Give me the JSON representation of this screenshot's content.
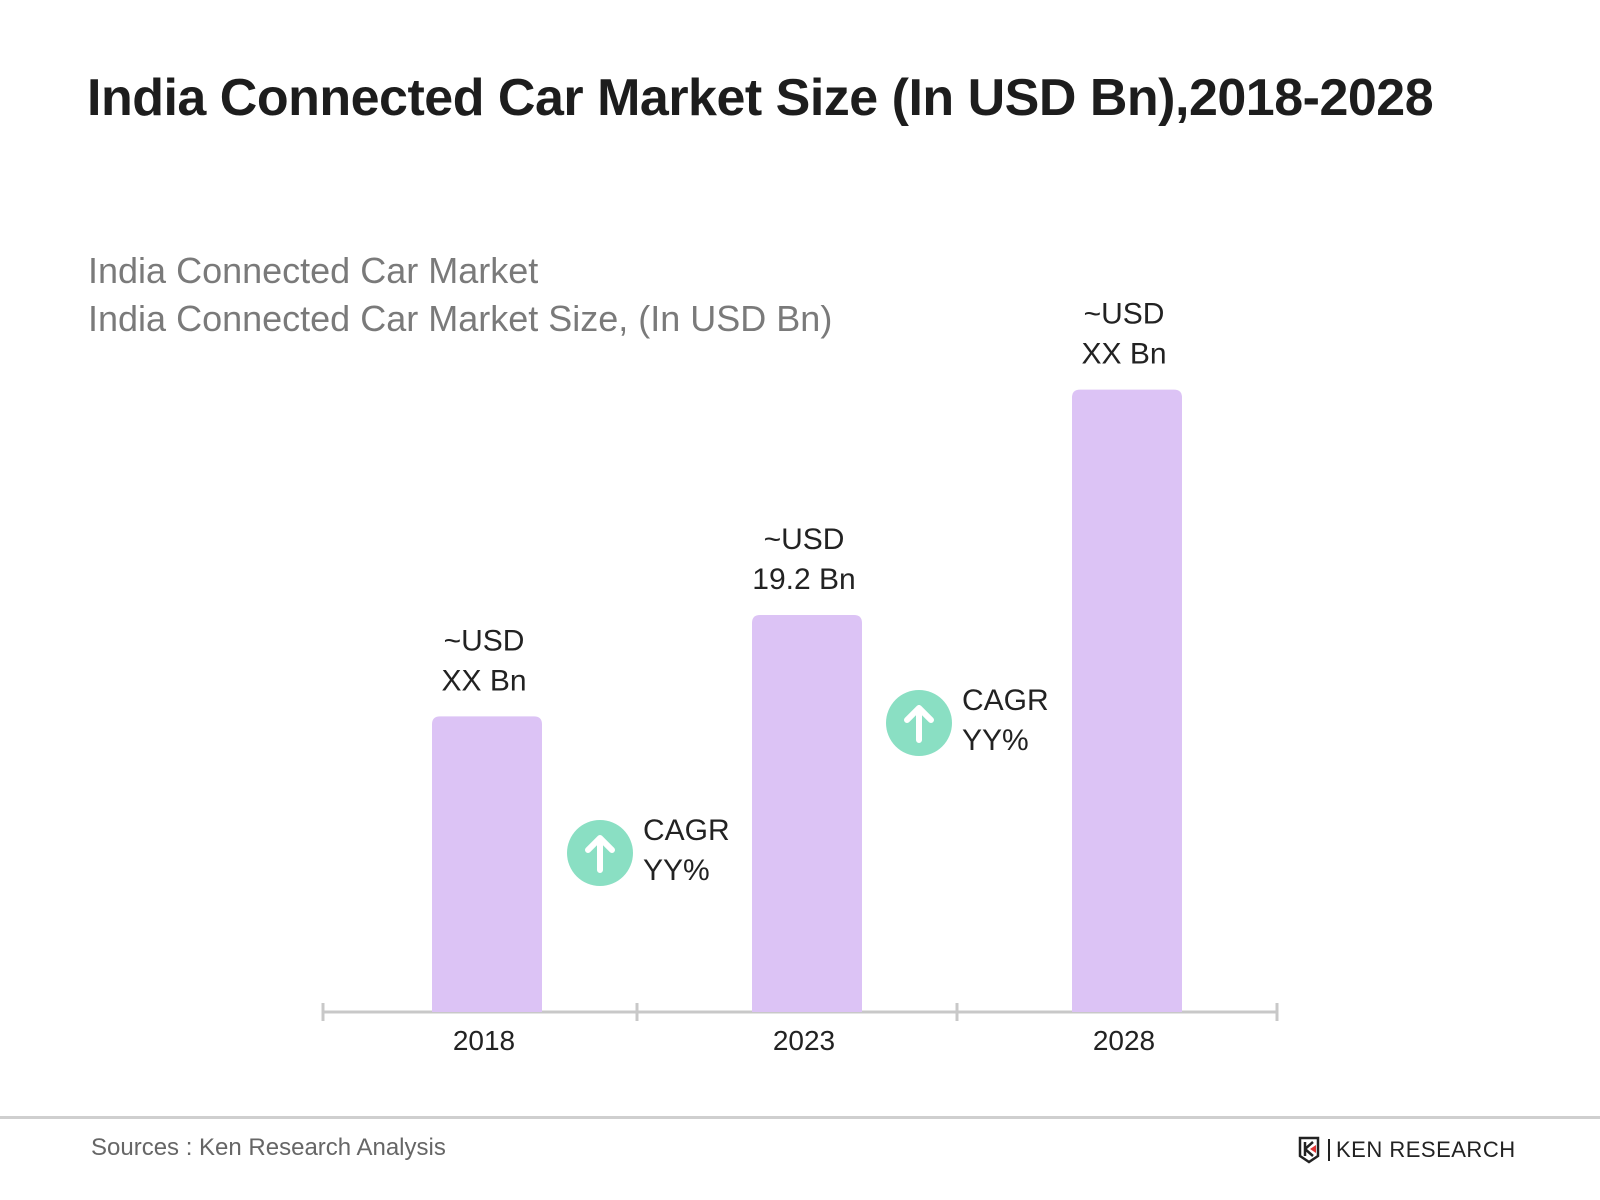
{
  "title": "India Connected Car Market Size (In USD Bn),2018-2028",
  "subtitle_lines": [
    "India Connected Car Market",
    "India Connected Car Market Size, (In USD Bn)"
  ],
  "chart_data": {
    "type": "bar",
    "categories": [
      "2018",
      "2023",
      "2028"
    ],
    "values": [
      14.3,
      19.2,
      30.1
    ],
    "data_labels": [
      [
        "~USD",
        "XX Bn"
      ],
      [
        "~USD",
        "19.2 Bn"
      ],
      [
        "~USD",
        "XX Bn"
      ]
    ],
    "annotations": [
      {
        "between": [
          "2018",
          "2023"
        ],
        "icon": "arrow-up-circle-icon",
        "lines": [
          "CAGR",
          "YY%"
        ]
      },
      {
        "between": [
          "2023",
          "2028"
        ],
        "icon": "arrow-up-circle-icon",
        "lines": [
          "CAGR",
          "YY%"
        ]
      }
    ],
    "title": "India Connected Car Market Size (In USD Bn),2018-2028",
    "xlabel": "",
    "ylabel": "",
    "grid": false,
    "colors": {
      "bar": "#dcc3f5",
      "cagr_icon": "#8adfc3",
      "axis": "#c8c8c8"
    }
  },
  "footer": {
    "source": "Sources : Ken Research Analysis",
    "logo_text": "KEN RESEARCH"
  }
}
